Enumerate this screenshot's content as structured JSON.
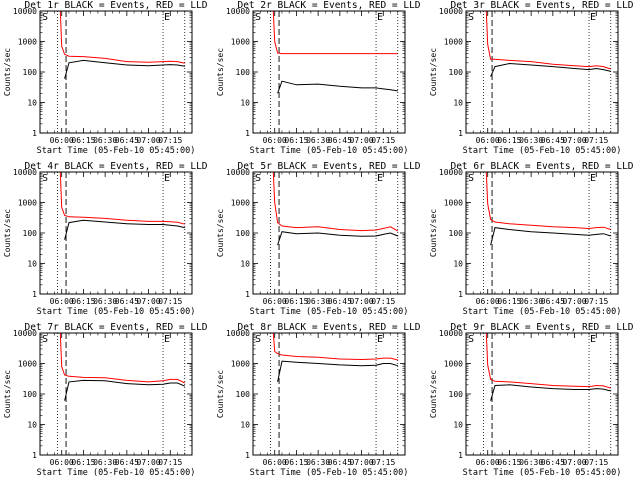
{
  "figure": {
    "x_axis_label": "Start Time (05-Feb-10 05:45:00)",
    "y_axis_label": "Counts/sec",
    "marker_S": "S",
    "marker_E": "E",
    "series_colors": {
      "events": "#000000",
      "lld": "#ff0000"
    }
  },
  "chart_data": [
    {
      "type": "line",
      "title": "Det 1r BLACK = Events, RED = LLD",
      "xlabel": "Start Time (05-Feb-10 05:45:00)",
      "ylabel": "Counts/sec",
      "yscale": "log",
      "ylim": [
        1,
        10000
      ],
      "x_ticks": [
        "06:00",
        "06:15",
        "06:30",
        "06:45",
        "07:00",
        "07:15"
      ],
      "y_ticks": [
        "1",
        "10",
        "100",
        "1000",
        "10000"
      ],
      "vertical_lines_dotted": [
        "05:57",
        "07:10",
        "07:25"
      ],
      "vertical_lines_dashed": [
        "06:03"
      ],
      "x": [
        "05:57",
        "05:59",
        "06:00",
        "06:02",
        "06:05",
        "06:15",
        "06:30",
        "06:45",
        "07:00",
        "07:10",
        "07:15",
        "07:20",
        "07:25"
      ],
      "series": [
        {
          "values": [
            null,
            null,
            null,
            60,
            200,
            240,
            200,
            170,
            160,
            170,
            175,
            170,
            155
          ]
        },
        {
          "values": [
            10000,
            10000,
            700,
            380,
            330,
            320,
            280,
            220,
            210,
            220,
            225,
            220,
            195
          ]
        }
      ]
    },
    {
      "type": "line",
      "title": "Det 2r BLACK = Events, RED = LLD",
      "xlabel": "Start Time (05-Feb-10 05:45:00)",
      "ylabel": "Counts/sec",
      "yscale": "log",
      "ylim": [
        1,
        10000
      ],
      "x_ticks": [
        "06:00",
        "06:15",
        "06:30",
        "06:45",
        "07:00",
        "07:15"
      ],
      "y_ticks": [
        "1",
        "10",
        "100",
        "1000",
        "10000"
      ],
      "vertical_lines_dotted": [
        "05:57",
        "07:10",
        "07:25"
      ],
      "vertical_lines_dashed": [
        "06:03"
      ],
      "x": [
        "05:57",
        "05:59",
        "06:00",
        "06:02",
        "06:05",
        "06:15",
        "06:30",
        "06:45",
        "07:00",
        "07:10",
        "07:15",
        "07:20",
        "07:25"
      ],
      "series": [
        {
          "values": [
            null,
            null,
            null,
            20,
            50,
            38,
            40,
            34,
            30,
            30,
            28,
            26,
            24
          ]
        },
        {
          "values": [
            10000,
            10000,
            1000,
            420,
            400,
            400,
            400,
            400,
            400,
            400,
            400,
            400,
            400
          ]
        }
      ]
    },
    {
      "type": "line",
      "title": "Det 3r BLACK = Events, RED = LLD",
      "xlabel": "Start Time (05-Feb-10 05:45:00)",
      "ylabel": "Counts/sec",
      "yscale": "log",
      "ylim": [
        1,
        10000
      ],
      "x_ticks": [
        "06:00",
        "06:15",
        "06:30",
        "06:45",
        "07:00",
        "07:15"
      ],
      "y_ticks": [
        "1",
        "10",
        "100",
        "1000",
        "10000"
      ],
      "vertical_lines_dotted": [
        "05:57",
        "07:10",
        "07:25"
      ],
      "vertical_lines_dashed": [
        "06:03"
      ],
      "x": [
        "05:57",
        "05:59",
        "06:00",
        "06:02",
        "06:05",
        "06:15",
        "06:30",
        "06:45",
        "07:00",
        "07:10",
        "07:15",
        "07:20",
        "07:25"
      ],
      "series": [
        {
          "values": [
            null,
            null,
            null,
            70,
            150,
            190,
            170,
            150,
            130,
            120,
            130,
            120,
            105
          ]
        },
        {
          "values": [
            10000,
            10000,
            800,
            260,
            260,
            240,
            220,
            180,
            160,
            150,
            160,
            150,
            125
          ]
        }
      ]
    },
    {
      "type": "line",
      "title": "Det 4r BLACK = Events, RED = LLD",
      "xlabel": "Start Time (05-Feb-10 05:45:00)",
      "ylabel": "Counts/sec",
      "yscale": "log",
      "ylim": [
        1,
        10000
      ],
      "x_ticks": [
        "06:00",
        "06:15",
        "06:30",
        "06:45",
        "07:00",
        "07:15"
      ],
      "y_ticks": [
        "1",
        "10",
        "100",
        "1000",
        "10000"
      ],
      "vertical_lines_dotted": [
        "05:57",
        "07:10",
        "07:25"
      ],
      "vertical_lines_dashed": [
        "06:03"
      ],
      "x": [
        "05:57",
        "05:59",
        "06:00",
        "06:02",
        "06:05",
        "06:15",
        "06:30",
        "06:45",
        "07:00",
        "07:10",
        "07:15",
        "07:20",
        "07:25"
      ],
      "series": [
        {
          "values": [
            null,
            null,
            null,
            60,
            220,
            260,
            230,
            200,
            190,
            190,
            180,
            170,
            150
          ]
        },
        {
          "values": [
            10000,
            10000,
            700,
            380,
            340,
            330,
            300,
            260,
            240,
            240,
            235,
            225,
            195
          ]
        }
      ]
    },
    {
      "type": "line",
      "title": "Det 5r BLACK = Events, RED = LLD",
      "xlabel": "Start Time (05-Feb-10 05:45:00)",
      "ylabel": "Counts/sec",
      "yscale": "log",
      "ylim": [
        1,
        10000
      ],
      "x_ticks": [
        "06:00",
        "06:15",
        "06:30",
        "06:45",
        "07:00",
        "07:15"
      ],
      "y_ticks": [
        "1",
        "10",
        "100",
        "1000",
        "10000"
      ],
      "vertical_lines_dotted": [
        "05:57",
        "07:10",
        "07:25"
      ],
      "vertical_lines_dashed": [
        "06:03"
      ],
      "x": [
        "05:57",
        "05:59",
        "06:00",
        "06:02",
        "06:05",
        "06:15",
        "06:30",
        "06:45",
        "07:00",
        "07:10",
        "07:15",
        "07:20",
        "07:25"
      ],
      "series": [
        {
          "values": [
            null,
            null,
            null,
            40,
            110,
            95,
            100,
            85,
            78,
            80,
            90,
            100,
            80
          ]
        },
        {
          "values": [
            10000,
            10000,
            1000,
            220,
            170,
            150,
            160,
            130,
            120,
            125,
            140,
            160,
            115
          ]
        }
      ]
    },
    {
      "type": "line",
      "title": "Det 6r BLACK = Events, RED = LLD",
      "xlabel": "Start Time (05-Feb-10 05:45:00)",
      "ylabel": "Counts/sec",
      "yscale": "log",
      "ylim": [
        1,
        10000
      ],
      "x_ticks": [
        "06:00",
        "06:15",
        "06:30",
        "06:45",
        "07:00",
        "07:15"
      ],
      "y_ticks": [
        "1",
        "10",
        "100",
        "1000",
        "10000"
      ],
      "vertical_lines_dotted": [
        "05:57",
        "07:10",
        "07:25"
      ],
      "vertical_lines_dashed": [
        "06:03"
      ],
      "x": [
        "05:57",
        "05:59",
        "06:00",
        "06:02",
        "06:05",
        "06:15",
        "06:30",
        "06:45",
        "07:00",
        "07:10",
        "07:15",
        "07:20",
        "07:25"
      ],
      "series": [
        {
          "values": [
            null,
            null,
            null,
            40,
            150,
            130,
            110,
            100,
            90,
            85,
            90,
            95,
            80
          ]
        },
        {
          "values": [
            10000,
            10000,
            900,
            280,
            230,
            200,
            180,
            160,
            150,
            140,
            150,
            155,
            130
          ]
        }
      ]
    },
    {
      "type": "line",
      "title": "Det 7r BLACK = Events, RED = LLD",
      "xlabel": "Start Time (05-Feb-10 05:45:00)",
      "ylabel": "Counts/sec",
      "yscale": "log",
      "ylim": [
        1,
        10000
      ],
      "x_ticks": [
        "06:00",
        "06:15",
        "06:30",
        "06:45",
        "07:00",
        "07:15"
      ],
      "y_ticks": [
        "1",
        "10",
        "100",
        "1000",
        "10000"
      ],
      "vertical_lines_dotted": [
        "05:57",
        "07:10",
        "07:25"
      ],
      "vertical_lines_dashed": [
        "06:03"
      ],
      "x": [
        "05:57",
        "05:59",
        "06:00",
        "06:02",
        "06:05",
        "06:15",
        "06:30",
        "06:45",
        "07:00",
        "07:10",
        "07:15",
        "07:20",
        "07:25"
      ],
      "series": [
        {
          "values": [
            null,
            null,
            null,
            60,
            250,
            280,
            270,
            220,
            200,
            210,
            230,
            230,
            180
          ]
        },
        {
          "values": [
            10000,
            10000,
            800,
            420,
            380,
            350,
            340,
            280,
            250,
            270,
            300,
            300,
            230
          ]
        }
      ]
    },
    {
      "type": "line",
      "title": "Det 8r BLACK = Events, RED = LLD",
      "xlabel": "Start Time (05-Feb-10 05:45:00)",
      "ylabel": "Counts/sec",
      "yscale": "log",
      "ylim": [
        1,
        10000
      ],
      "x_ticks": [
        "06:00",
        "06:15",
        "06:30",
        "06:45",
        "07:00",
        "07:15"
      ],
      "y_ticks": [
        "1",
        "10",
        "100",
        "1000",
        "10000"
      ],
      "vertical_lines_dotted": [
        "05:57",
        "07:10",
        "07:25"
      ],
      "vertical_lines_dashed": [
        "06:03"
      ],
      "x": [
        "05:57",
        "05:59",
        "06:00",
        "06:02",
        "06:05",
        "06:15",
        "06:30",
        "06:45",
        "07:00",
        "07:10",
        "07:15",
        "07:20",
        "07:25"
      ],
      "series": [
        {
          "values": [
            null,
            null,
            null,
            250,
            1200,
            1100,
            1000,
            900,
            850,
            880,
            1000,
            1000,
            850
          ]
        },
        {
          "values": [
            10000,
            10000,
            2500,
            2100,
            1900,
            1700,
            1600,
            1400,
            1350,
            1400,
            1500,
            1500,
            1300
          ]
        }
      ]
    },
    {
      "type": "line",
      "title": "Det 9r BLACK = Events, RED = LLD",
      "xlabel": "Start Time (05-Feb-10 05:45:00)",
      "ylabel": "Counts/sec",
      "yscale": "log",
      "ylim": [
        1,
        10000
      ],
      "x_ticks": [
        "06:00",
        "06:15",
        "06:30",
        "06:45",
        "07:00",
        "07:15"
      ],
      "y_ticks": [
        "1",
        "10",
        "100",
        "1000",
        "10000"
      ],
      "vertical_lines_dotted": [
        "05:57",
        "07:10",
        "07:25"
      ],
      "vertical_lines_dashed": [
        "06:03"
      ],
      "x": [
        "05:57",
        "05:59",
        "06:00",
        "06:02",
        "06:05",
        "06:15",
        "06:30",
        "06:45",
        "07:00",
        "07:10",
        "07:15",
        "07:20",
        "07:25"
      ],
      "series": [
        {
          "values": [
            null,
            null,
            null,
            60,
            190,
            200,
            170,
            150,
            140,
            140,
            150,
            145,
            125
          ]
        },
        {
          "values": [
            10000,
            10000,
            900,
            300,
            260,
            250,
            220,
            190,
            180,
            175,
            190,
            185,
            155
          ]
        }
      ]
    }
  ]
}
